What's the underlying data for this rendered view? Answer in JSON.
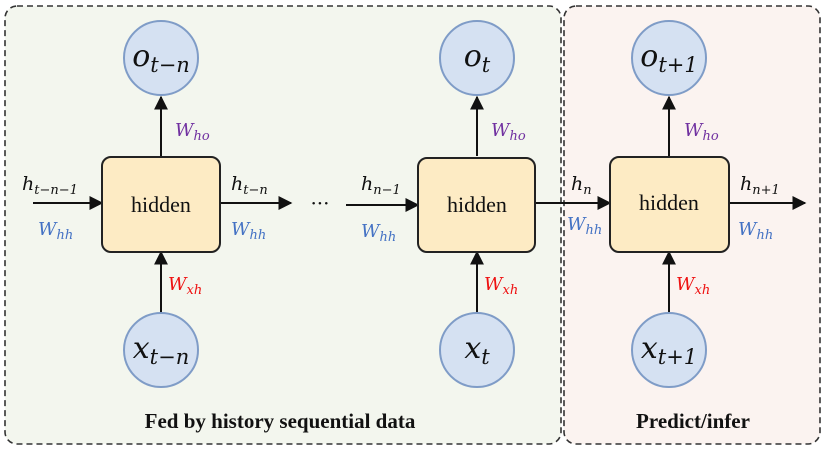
{
  "regions": {
    "history_caption": "Fed by history sequential data",
    "predict_caption": "Predict/infer"
  },
  "cells": [
    {
      "hidden": "hidden",
      "output": {
        "main": "o",
        "sub": "t−n"
      },
      "input": {
        "main": "x",
        "sub": "t−n"
      },
      "w_ho": {
        "main": "W",
        "sub": "ho"
      },
      "w_xh": {
        "main": "W",
        "sub": "xh"
      }
    },
    {
      "hidden": "hidden",
      "output": {
        "main": "o",
        "sub": "t"
      },
      "input": {
        "main": "x",
        "sub": "t"
      },
      "w_ho": {
        "main": "W",
        "sub": "ho"
      },
      "w_xh": {
        "main": "W",
        "sub": "xh"
      }
    },
    {
      "hidden": "hidden",
      "output": {
        "main": "o",
        "sub": "t+1"
      },
      "input": {
        "main": "x",
        "sub": "t+1"
      },
      "w_ho": {
        "main": "W",
        "sub": "ho"
      },
      "w_xh": {
        "main": "W",
        "sub": "xh"
      }
    }
  ],
  "hidden_states": [
    {
      "main": "h",
      "sub": "t−n−1"
    },
    {
      "main": "h",
      "sub": "t−n"
    },
    {
      "main": "h",
      "sub": "n−1"
    },
    {
      "main": "h",
      "sub": "n"
    },
    {
      "main": "h",
      "sub": "n+1"
    }
  ],
  "w_hh": [
    {
      "main": "W",
      "sub": "hh"
    },
    {
      "main": "W",
      "sub": "hh"
    },
    {
      "main": "W",
      "sub": "hh"
    },
    {
      "main": "W",
      "sub": "hh"
    },
    {
      "main": "W",
      "sub": "hh"
    }
  ],
  "ellipsis": "···",
  "colors": {
    "history_bg": "#f3f6ee",
    "predict_bg": "#fbf3f0",
    "hidden_fill": "#fdebc4",
    "hidden_stroke": "#222222",
    "node_fill": "#d5e1f2",
    "node_stroke": "#7f9cc7",
    "w_hh": "#4472c4",
    "w_ho": "#7030a0",
    "w_xh": "#ee1111"
  }
}
